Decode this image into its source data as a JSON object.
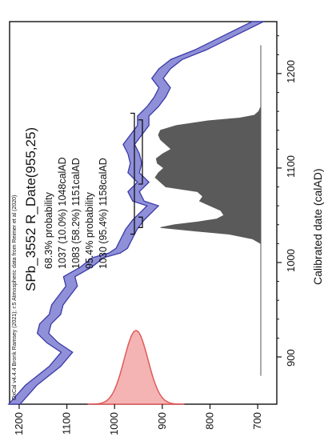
{
  "chart_data": {
    "type": "area",
    "orientation": "rotated-90-ccw",
    "title": "SPb_3552 R_Date(955,25)",
    "credit": "OxCal v4.4.4 Bronk Ramsey (2021); r:5 Atmospheric data from Reimer et al (2020)",
    "xlabel": "Calibrated date (calAD)",
    "ylabel": "",
    "xlim": [
      850,
      1255
    ],
    "ylim": [
      660,
      1220
    ],
    "x_ticks": [
      900,
      1000,
      1100,
      1200
    ],
    "y_ticks": [
      700,
      800,
      900,
      1000,
      1100,
      1200
    ],
    "annotations": [
      "68.3% probability",
      "1037 (10.0%) 1048calAD",
      "1083 (58.2%) 1151calAD",
      "95.4% probability",
      "1030 (95.4%) 1158calAD"
    ],
    "radiocarbon_date": {
      "mean": 955,
      "sd": 25,
      "color": "#e05a5a",
      "fill": "#f4b4b4"
    },
    "calibration_curve": {
      "color": "#3b3ba8",
      "fill": "#8f90d8",
      "x": [
        850,
        870,
        890,
        905,
        915,
        925,
        935,
        945,
        955,
        965,
        975,
        985,
        995,
        1005,
        1010,
        1015,
        1025,
        1035,
        1045,
        1055,
        1060,
        1065,
        1075,
        1085,
        1095,
        1105,
        1115,
        1125,
        1135,
        1145,
        1155,
        1165,
        1175,
        1185,
        1195,
        1205,
        1215,
        1225,
        1240,
        1255
      ],
      "y": [
        1210,
        1175,
        1125,
        1100,
        1130,
        1150,
        1145,
        1125,
        1120,
        1105,
        1090,
        1095,
        1060,
        1035,
        1000,
        985,
        975,
        965,
        950,
        930,
        920,
        950,
        960,
        940,
        960,
        955,
        960,
        970,
        955,
        940,
        940,
        920,
        905,
        895,
        910,
        895,
        870,
        820,
        760,
        700
      ]
    },
    "calibrated_distribution": {
      "color": "#5a5a5a",
      "x": [
        1020,
        1025,
        1030,
        1033,
        1037,
        1040,
        1043,
        1046,
        1050,
        1055,
        1060,
        1065,
        1070,
        1075,
        1080,
        1085,
        1090,
        1095,
        1100,
        1105,
        1110,
        1115,
        1120,
        1125,
        1130,
        1135,
        1140,
        1145,
        1150,
        1153,
        1156,
        1160,
        1165
      ],
      "density": [
        0,
        0.08,
        0.3,
        0.6,
        0.95,
        0.82,
        0.6,
        0.42,
        0.35,
        0.38,
        0.48,
        0.58,
        0.55,
        0.6,
        0.9,
        0.95,
        1.0,
        0.97,
        0.92,
        0.98,
        0.99,
        0.93,
        0.85,
        0.9,
        0.95,
        0.97,
        0.95,
        0.8,
        0.5,
        0.2,
        0.06,
        0.02,
        0
      ]
    },
    "ranges": {
      "68.3%": [
        [
          1037,
          1048
        ],
        [
          1083,
          1151
        ]
      ],
      "95.4%": [
        [
          1030,
          1158
        ]
      ]
    }
  }
}
